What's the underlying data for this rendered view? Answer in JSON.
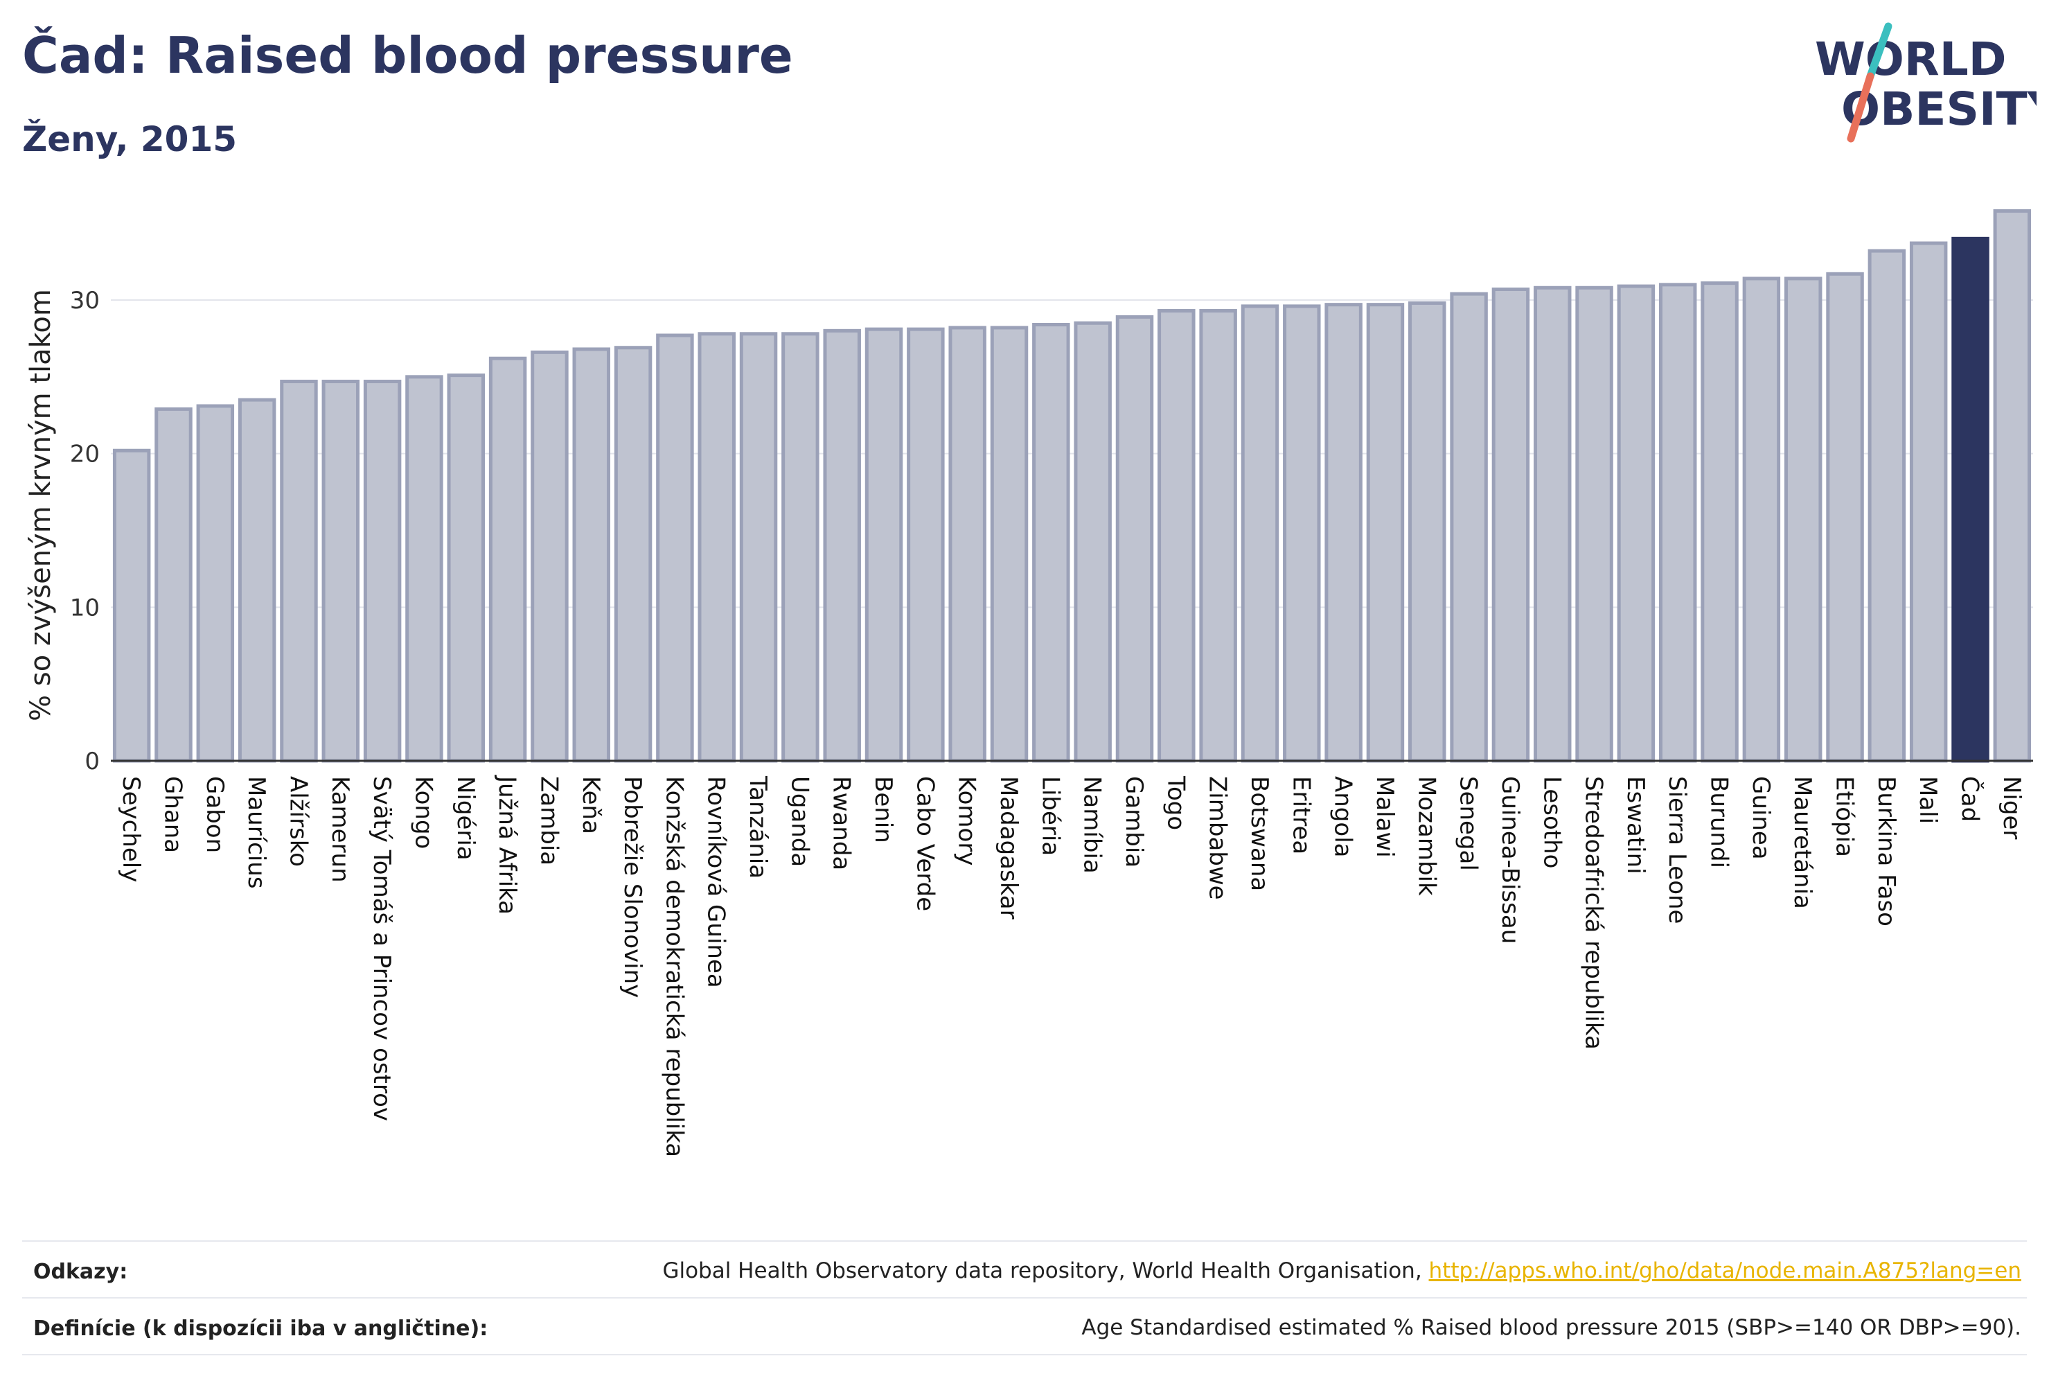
{
  "header": {
    "title": "Čad: Raised blood pressure",
    "subtitle": "Ženy, 2015"
  },
  "logo": {
    "line1": "WORLD",
    "line2": "OBESITY",
    "text_color": "#2c3560",
    "slash_color_top": "#3bbfbf",
    "slash_color_bottom": "#e8705a"
  },
  "colors": {
    "bar_default": "#bfc3d0",
    "bar_border": "#9ba1b8",
    "bar_highlight": "#2c3560",
    "axis": "#333333",
    "grid": "#e3e5ec"
  },
  "chart_data": {
    "type": "bar",
    "ylabel": "% so zvýšeným krvným tlakom",
    "ylim": [
      0,
      36
    ],
    "yticks": [
      0,
      10,
      20,
      30
    ],
    "highlight": "Čad",
    "grid": true,
    "categories": [
      "Seychely",
      "Ghana",
      "Gabon",
      "Maurícius",
      "Alžírsko",
      "Kamerun",
      "Svätý Tomáš a Princov ostrov",
      "Kongo",
      "Nigéria",
      "Južná Afrika",
      "Zambia",
      "Keňa",
      "Pobrežie Slonoviny",
      "Konžská demokratická republika",
      "Rovníková Guinea",
      "Tanzánia",
      "Uganda",
      "Rwanda",
      "Benin",
      "Cabo Verde",
      "Komory",
      "Madagaskar",
      "Libéria",
      "Namíbia",
      "Gambia",
      "Togo",
      "Zimbabwe",
      "Botswana",
      "Eritrea",
      "Angola",
      "Malawi",
      "Mozambik",
      "Senegal",
      "Guinea-Bissau",
      "Lesotho",
      "Stredoafrická republika",
      "Eswatini",
      "Sierra Leone",
      "Burundi",
      "Guinea",
      "Mauretánia",
      "Etiópia",
      "Burkina Faso",
      "Mali",
      "Čad",
      "Niger"
    ],
    "values": [
      20.2,
      22.9,
      23.1,
      23.5,
      24.7,
      24.7,
      24.7,
      25.0,
      25.1,
      26.2,
      26.6,
      26.8,
      26.9,
      27.7,
      27.8,
      27.8,
      27.8,
      28.0,
      28.1,
      28.1,
      28.2,
      28.2,
      28.4,
      28.5,
      28.9,
      29.3,
      29.3,
      29.6,
      29.6,
      29.7,
      29.7,
      29.8,
      30.4,
      30.7,
      30.8,
      30.8,
      30.9,
      31.0,
      31.1,
      31.4,
      31.4,
      31.7,
      33.2,
      33.7,
      34.0,
      35.8
    ]
  },
  "footer": {
    "references_label": "Odkazy:",
    "references_text": "Global Health Observatory data repository, World Health Organisation, ",
    "references_link": "http://apps.who.int/gho/data/node.main.A875?lang=en",
    "definitions_label": "Definície (k dispozícii iba v angličtine):",
    "definitions_text": "Age Standardised estimated % Raised blood pressure 2015 (SBP>=140 OR DBP>=90)."
  }
}
